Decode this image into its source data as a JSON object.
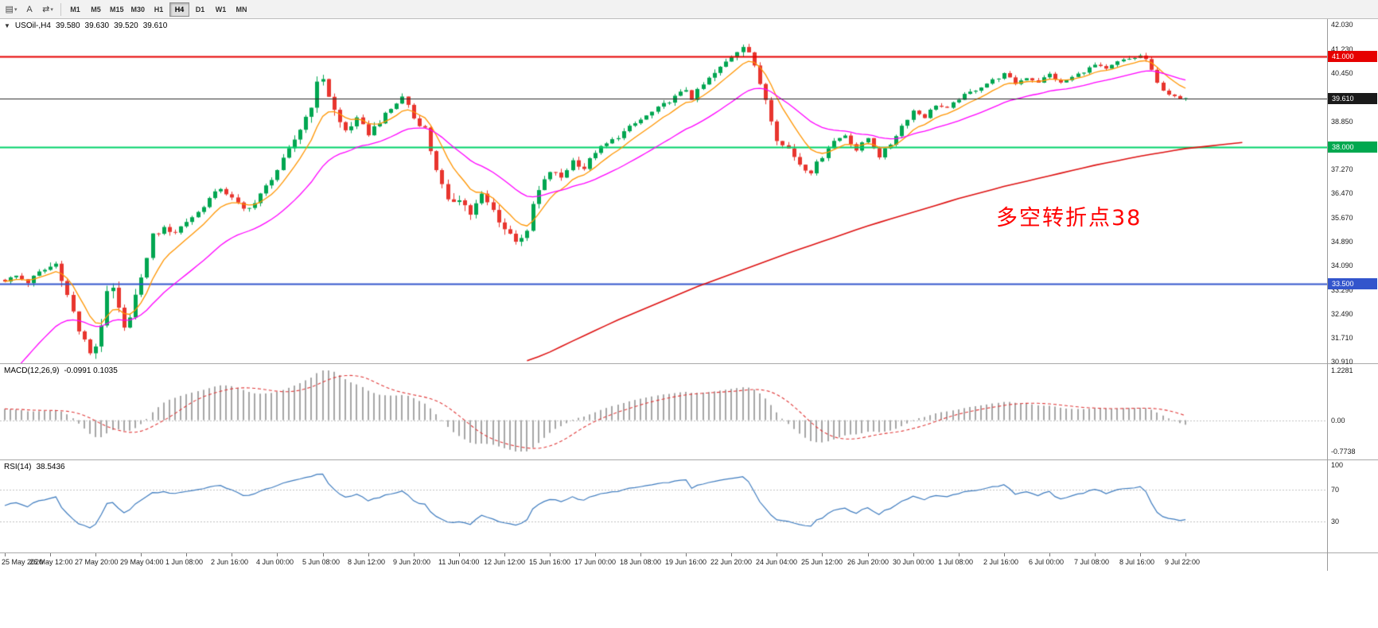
{
  "toolbar": {
    "icon_buttons": [
      {
        "name": "new-chart-icon",
        "glyph": "▤"
      },
      {
        "name": "cursor-tool-icon",
        "glyph": "A"
      },
      {
        "name": "chart-shift-icon",
        "glyph": "⇄"
      }
    ],
    "timeframes": [
      {
        "label": "M1",
        "active": false
      },
      {
        "label": "M5",
        "active": false
      },
      {
        "label": "M15",
        "active": false
      },
      {
        "label": "M30",
        "active": false
      },
      {
        "label": "H1",
        "active": false
      },
      {
        "label": "H4",
        "active": true
      },
      {
        "label": "D1",
        "active": false
      },
      {
        "label": "W1",
        "active": false
      },
      {
        "label": "MN",
        "active": false
      }
    ]
  },
  "price_panel": {
    "collapse_icon": "▼",
    "symbol": "USOil-,H4",
    "ohlc": {
      "open": "39.580",
      "high": "39.630",
      "low": "39.520",
      "close": "39.610"
    },
    "annotation": {
      "text": "多空转折点38",
      "color": "#ff0000"
    },
    "candle_colors": {
      "up": "#00a651",
      "down": "#e8352e"
    },
    "y_range": [
      30.87,
      42.22
    ],
    "scale_ticks": [
      {
        "label": "42.030",
        "value": 42.03
      },
      {
        "label": "41.230",
        "value": 41.23
      },
      {
        "label": "40.450",
        "value": 40.45
      },
      {
        "label": "38.850",
        "value": 38.85
      },
      {
        "label": "37.270",
        "value": 37.27
      },
      {
        "label": "36.470",
        "value": 36.47
      },
      {
        "label": "35.670",
        "value": 35.67
      },
      {
        "label": "34.890",
        "value": 34.89
      },
      {
        "label": "34.090",
        "value": 34.09
      },
      {
        "label": "33.290",
        "value": 33.29
      },
      {
        "label": "32.490",
        "value": 32.49
      },
      {
        "label": "31.710",
        "value": 31.71
      },
      {
        "label": "30.910",
        "value": 30.91
      }
    ],
    "levels": [
      {
        "value": 41.0,
        "label": "41.000",
        "color": "#e60000",
        "badge_bg": "#e60000",
        "width": 2,
        "is_current": false
      },
      {
        "value": 39.61,
        "label": "39.610",
        "color": "#2b2b2b",
        "badge_bg": "#1a1a1a",
        "width": 1,
        "is_current": true
      },
      {
        "value": 38.0,
        "label": "38.000",
        "color": "#00d26a",
        "badge_bg": "#00a84f",
        "width": 2,
        "is_current": false
      },
      {
        "value": 33.5,
        "label": "33.500",
        "color": "#3355cc",
        "badge_bg": "#3355cc",
        "width": 2,
        "is_current": false
      }
    ]
  },
  "macd_panel": {
    "name": "MACD(12,26,9)",
    "values": "-0.0991 0.1035",
    "histogram_color": "#a6a6a6",
    "signal_color": "#e03a3a",
    "zero_line_color": "#c0c0c0",
    "y_range": [
      -0.7738,
      1.2281
    ],
    "scale_ticks": [
      {
        "label": "1.2281",
        "value": 1.2281
      },
      {
        "label": "0.00",
        "value": 0
      },
      {
        "label": "-0.7738",
        "value": -0.7738
      }
    ]
  },
  "rsi_panel": {
    "name": "RSI(14)",
    "value": "38.5436",
    "line_color": "#3f7cbf",
    "level_color": "#c0c0c0",
    "levels": [
      70,
      30
    ],
    "y_range": [
      0,
      100
    ],
    "scale_ticks": [
      {
        "label": "100",
        "value": 100
      },
      {
        "label": "70",
        "value": 70
      },
      {
        "label": "30",
        "value": 30
      }
    ]
  },
  "time_axis": {
    "labels": [
      "25 May 2020",
      "26 May 12:00",
      "27 May 20:00",
      "29 May 04:00",
      "1 Jun 08:00",
      "2 Jun 16:00",
      "4 Jun 00:00",
      "5 Jun 08:00",
      "8 Jun 12:00",
      "9 Jun 20:00",
      "11 Jun 04:00",
      "12 Jun 12:00",
      "15 Jun 16:00",
      "17 Jun 00:00",
      "18 Jun 08:00",
      "19 Jun 16:00",
      "22 Jun 20:00",
      "24 Jun 04:00",
      "25 Jun 12:00",
      "26 Jun 20:00",
      "30 Jun 00:00",
      "1 Jul 08:00",
      "2 Jul 16:00",
      "6 Jul 00:00",
      "7 Jul 08:00",
      "8 Jul 16:00",
      "9 Jul 22:00"
    ]
  },
  "chart_data": {
    "type": "candlestick",
    "symbol": "USOil",
    "timeframe": "H4",
    "visible_range": {
      "start": "25 May 2020",
      "end": "9 Jul 22:00"
    },
    "candle_count": 209,
    "x_tick_candle_step": 8,
    "last_quote": {
      "open": 39.58,
      "high": 39.63,
      "low": 39.52,
      "close": 39.61
    },
    "current_price": 39.61,
    "horizontal_lines": [
      41.0,
      38.0,
      33.5
    ],
    "price_anchors": [
      [
        0,
        33.6
      ],
      [
        2,
        33.75
      ],
      [
        4,
        33.55
      ],
      [
        6,
        33.85
      ],
      [
        8,
        34.05
      ],
      [
        9,
        34.15
      ],
      [
        10,
        33.7
      ],
      [
        11,
        33.1
      ],
      [
        12,
        32.55
      ],
      [
        13,
        31.95
      ],
      [
        14,
        31.55
      ],
      [
        15,
        31.25
      ],
      [
        16,
        31.45
      ],
      [
        17,
        32.2
      ],
      [
        18,
        33.1
      ],
      [
        19,
        33.3
      ],
      [
        20,
        32.6
      ],
      [
        21,
        31.95
      ],
      [
        22,
        32.5
      ],
      [
        23,
        33.1
      ],
      [
        24,
        33.6
      ],
      [
        25,
        34.4
      ],
      [
        26,
        35.1
      ],
      [
        28,
        35.3
      ],
      [
        30,
        35.2
      ],
      [
        32,
        35.55
      ],
      [
        34,
        35.85
      ],
      [
        36,
        36.3
      ],
      [
        38,
        36.65
      ],
      [
        40,
        36.3
      ],
      [
        42,
        35.95
      ],
      [
        44,
        36.15
      ],
      [
        46,
        36.7
      ],
      [
        48,
        37.25
      ],
      [
        50,
        37.9
      ],
      [
        52,
        38.6
      ],
      [
        54,
        39.4
      ],
      [
        55,
        40.05
      ],
      [
        56,
        40.3
      ],
      [
        57,
        39.7
      ],
      [
        58,
        39.2
      ],
      [
        59,
        38.8
      ],
      [
        60,
        38.55
      ],
      [
        62,
        38.9
      ],
      [
        64,
        38.45
      ],
      [
        66,
        38.85
      ],
      [
        68,
        39.25
      ],
      [
        70,
        39.65
      ],
      [
        71,
        39.4
      ],
      [
        72,
        38.95
      ],
      [
        74,
        38.6
      ],
      [
        75,
        37.9
      ],
      [
        76,
        37.3
      ],
      [
        77,
        36.7
      ],
      [
        78,
        36.15
      ],
      [
        80,
        36.35
      ],
      [
        82,
        35.8
      ],
      [
        84,
        36.4
      ],
      [
        86,
        35.9
      ],
      [
        88,
        35.3
      ],
      [
        90,
        34.95
      ],
      [
        92,
        35.15
      ],
      [
        93,
        36.1
      ],
      [
        94,
        36.55
      ],
      [
        96,
        37.2
      ],
      [
        98,
        37.0
      ],
      [
        100,
        37.55
      ],
      [
        102,
        37.3
      ],
      [
        104,
        37.85
      ],
      [
        106,
        38.1
      ],
      [
        108,
        38.35
      ],
      [
        110,
        38.65
      ],
      [
        112,
        38.9
      ],
      [
        114,
        39.15
      ],
      [
        116,
        39.4
      ],
      [
        118,
        39.65
      ],
      [
        120,
        39.9
      ],
      [
        121,
        39.6
      ],
      [
        122,
        39.85
      ],
      [
        124,
        40.25
      ],
      [
        126,
        40.6
      ],
      [
        128,
        41.0
      ],
      [
        130,
        41.4
      ],
      [
        131,
        41.15
      ],
      [
        132,
        40.6
      ],
      [
        133,
        40.1
      ],
      [
        134,
        39.6
      ],
      [
        135,
        38.95
      ],
      [
        136,
        38.3
      ],
      [
        137,
        38.05
      ],
      [
        138,
        37.95
      ],
      [
        139,
        37.7
      ],
      [
        140,
        37.45
      ],
      [
        141,
        37.3
      ],
      [
        142,
        37.2
      ],
      [
        143,
        37.45
      ],
      [
        144,
        37.7
      ],
      [
        145,
        38.0
      ],
      [
        146,
        38.2
      ],
      [
        148,
        38.4
      ],
      [
        150,
        37.9
      ],
      [
        152,
        38.3
      ],
      [
        154,
        37.7
      ],
      [
        156,
        38.1
      ],
      [
        158,
        38.7
      ],
      [
        160,
        39.2
      ],
      [
        162,
        39.0
      ],
      [
        164,
        39.4
      ],
      [
        166,
        39.25
      ],
      [
        168,
        39.6
      ],
      [
        170,
        39.8
      ],
      [
        172,
        40.0
      ],
      [
        174,
        40.2
      ],
      [
        176,
        40.4
      ],
      [
        178,
        40.1
      ],
      [
        180,
        40.3
      ],
      [
        182,
        40.15
      ],
      [
        184,
        40.4
      ],
      [
        186,
        40.1
      ],
      [
        188,
        40.3
      ],
      [
        190,
        40.5
      ],
      [
        192,
        40.7
      ],
      [
        194,
        40.55
      ],
      [
        196,
        40.8
      ],
      [
        198,
        40.9
      ],
      [
        200,
        41.0
      ],
      [
        201,
        40.9
      ],
      [
        202,
        40.5
      ],
      [
        203,
        40.1
      ],
      [
        204,
        39.9
      ],
      [
        205,
        39.75
      ],
      [
        206,
        39.65
      ],
      [
        207,
        39.58
      ],
      [
        208,
        39.61
      ]
    ],
    "volatility_anchors": [
      [
        0,
        0.1
      ],
      [
        10,
        0.22
      ],
      [
        16,
        0.3
      ],
      [
        22,
        0.24
      ],
      [
        28,
        0.14
      ],
      [
        40,
        0.12
      ],
      [
        50,
        0.14
      ],
      [
        56,
        0.26
      ],
      [
        62,
        0.16
      ],
      [
        72,
        0.14
      ],
      [
        78,
        0.24
      ],
      [
        90,
        0.2
      ],
      [
        96,
        0.16
      ],
      [
        110,
        0.11
      ],
      [
        122,
        0.12
      ],
      [
        130,
        0.22
      ],
      [
        138,
        0.18
      ],
      [
        146,
        0.12
      ],
      [
        160,
        0.11
      ],
      [
        176,
        0.1
      ],
      [
        190,
        0.09
      ],
      [
        200,
        0.12
      ],
      [
        204,
        0.09
      ],
      [
        208,
        0.05
      ]
    ],
    "moving_averages": [
      {
        "name": "fast-ma",
        "color": "#ff9500",
        "period": 8
      },
      {
        "name": "mid-ma",
        "color": "#ff00ff",
        "period": 24,
        "seed": 29.8
      },
      {
        "name": "slow-ma",
        "color": "#dd1111",
        "anchors": [
          [
            88,
            30.7
          ],
          [
            95,
            31.15
          ],
          [
            100,
            31.6
          ],
          [
            108,
            32.3
          ],
          [
            115,
            32.85
          ],
          [
            122,
            33.4
          ],
          [
            130,
            33.95
          ],
          [
            138,
            34.5
          ],
          [
            145,
            34.95
          ],
          [
            152,
            35.4
          ],
          [
            160,
            35.85
          ],
          [
            168,
            36.3
          ],
          [
            176,
            36.7
          ],
          [
            184,
            37.05
          ],
          [
            192,
            37.4
          ],
          [
            200,
            37.7
          ],
          [
            208,
            37.95
          ],
          [
            218,
            38.15
          ]
        ]
      }
    ],
    "indicators": [
      {
        "type": "MACD",
        "params": [
          12,
          26,
          9
        ],
        "display_values": "-0.0991 0.1035",
        "range": [
          -0.7738,
          1.2281
        ]
      },
      {
        "type": "RSI",
        "params": [
          14
        ],
        "display_value": "38.5436",
        "levels": [
          70,
          30
        ],
        "range": [
          0,
          100
        ]
      }
    ]
  }
}
